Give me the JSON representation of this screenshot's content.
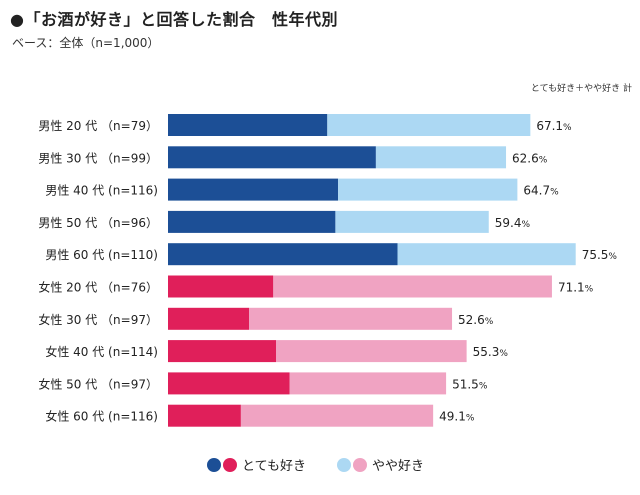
{
  "title": "●「お酒が好き」と回答した割合　性年代別",
  "base_note": "ベース：全体（n=1,000）",
  "chart_data": {
    "type": "bar",
    "orientation": "horizontal",
    "stacked": true,
    "total_label_header": "とても好き＋やや好き 計",
    "unit": "%",
    "xlim": [
      0,
      100
    ],
    "categories": [
      "男性 20 代 （n=79）",
      "男性 30 代 （n=99）",
      "男性 40 代 (n=116)",
      "男性 50 代 （n=96）",
      "男性 60 代 (n=110)",
      "女性 20 代 （n=76）",
      "女性 30 代 （n=97）",
      "女性 40 代 (n=114)",
      "女性 50 代 （n=97）",
      "女性 60 代 (n=116)"
    ],
    "groups": [
      "male",
      "male",
      "male",
      "male",
      "male",
      "female",
      "female",
      "female",
      "female",
      "female"
    ],
    "series": [
      {
        "name": "とても好き",
        "values": [
          29.5,
          38.5,
          31.5,
          31.0,
          42.5,
          19.5,
          15.0,
          20.0,
          22.5,
          13.5
        ]
      },
      {
        "name": "やや好き",
        "values": [
          37.6,
          24.1,
          33.2,
          28.4,
          33.0,
          51.6,
          37.6,
          35.3,
          29.0,
          35.6
        ]
      }
    ],
    "totals": [
      67.1,
      62.6,
      64.7,
      59.4,
      75.5,
      71.1,
      52.6,
      55.3,
      51.5,
      49.1
    ],
    "colors": {
      "male_strong": "#1c4f96",
      "male_light": "#acd8f3",
      "female_strong": "#e01f5a",
      "female_light": "#f0a3c2"
    },
    "legend": [
      {
        "label": "とても好き",
        "colors": [
          "#1c4f96",
          "#e01f5a"
        ]
      },
      {
        "label": "やや好き",
        "colors": [
          "#acd8f3",
          "#f0a3c2"
        ]
      }
    ]
  }
}
